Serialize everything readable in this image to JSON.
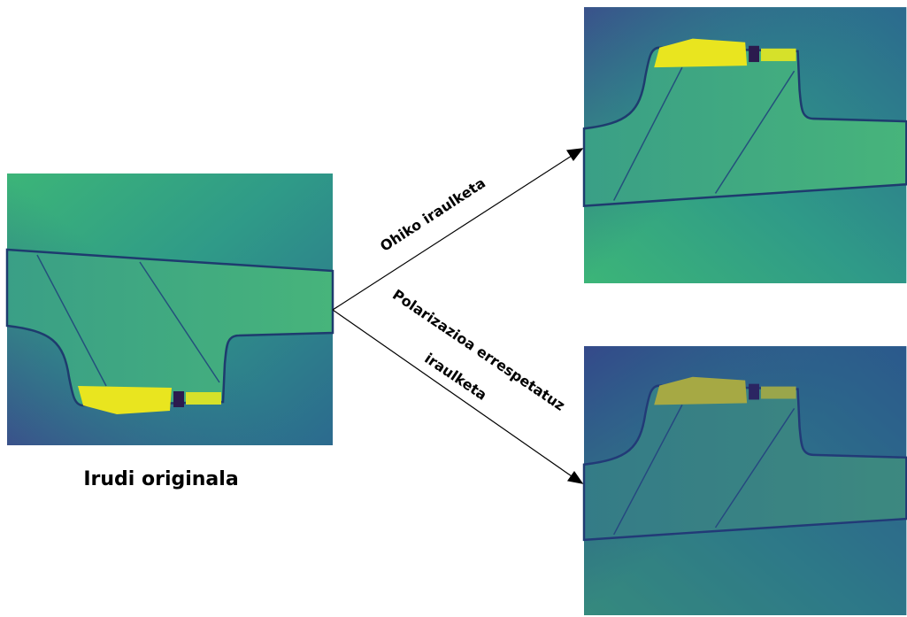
{
  "labels": {
    "original": "Irudi originala",
    "common_flip": "Ohiko iraulketa",
    "polarization_flip_line1": "Polarizazioa errespetatuz",
    "polarization_flip_line2": "iraulketa"
  }
}
